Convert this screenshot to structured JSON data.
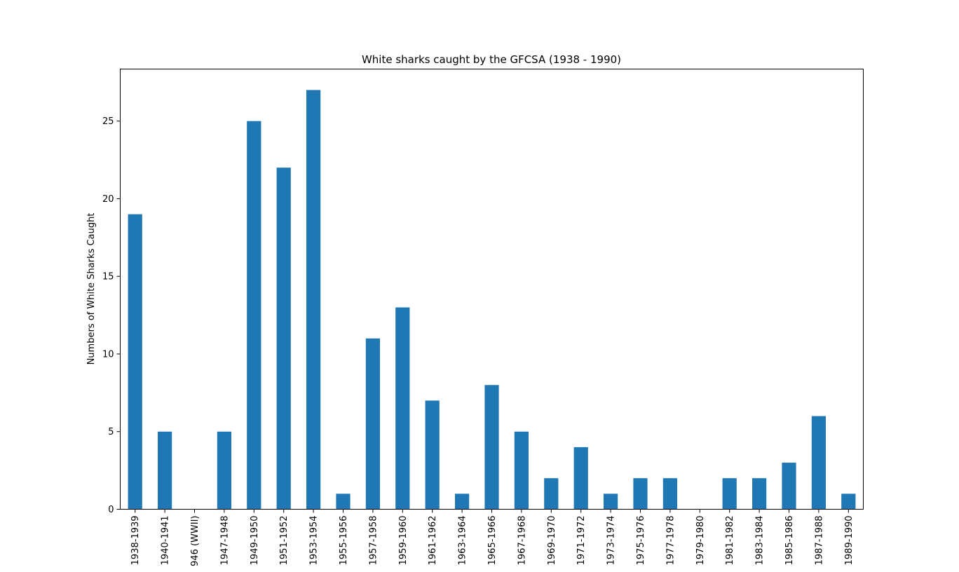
{
  "chart_data": {
    "type": "bar",
    "title": "White sharks caught by the GFCSA (1938 - 1990)",
    "xlabel": "",
    "ylabel": "Numbers of White Sharks Caught",
    "ylim": [
      0,
      28.35
    ],
    "yticks": [
      0,
      5,
      10,
      15,
      20,
      25
    ],
    "grid": false,
    "legend": "none",
    "colors": {
      "bar": "#1f77b4",
      "axis": "#000000",
      "background": "#ffffff"
    },
    "categories": [
      "1938-1939",
      "1940-1941",
      "946 (WWII)",
      "1947-1948",
      "1949-1950",
      "1951-1952",
      "1953-1954",
      "1955-1956",
      "1957-1958",
      "1959-1960",
      "1961-1962",
      "1963-1964",
      "1965-1966",
      "1967-1968",
      "1969-1970",
      "1971-1972",
      "1973-1974",
      "1975-1976",
      "1977-1978",
      "1979-1980",
      "1981-1982",
      "1983-1984",
      "1985-1986",
      "1987-1988",
      "1989-1990"
    ],
    "values": [
      19,
      5,
      0,
      5,
      25,
      22,
      27,
      1,
      11,
      13,
      7,
      1,
      8,
      5,
      2,
      4,
      1,
      2,
      2,
      0,
      2,
      2,
      3,
      6,
      1
    ]
  }
}
